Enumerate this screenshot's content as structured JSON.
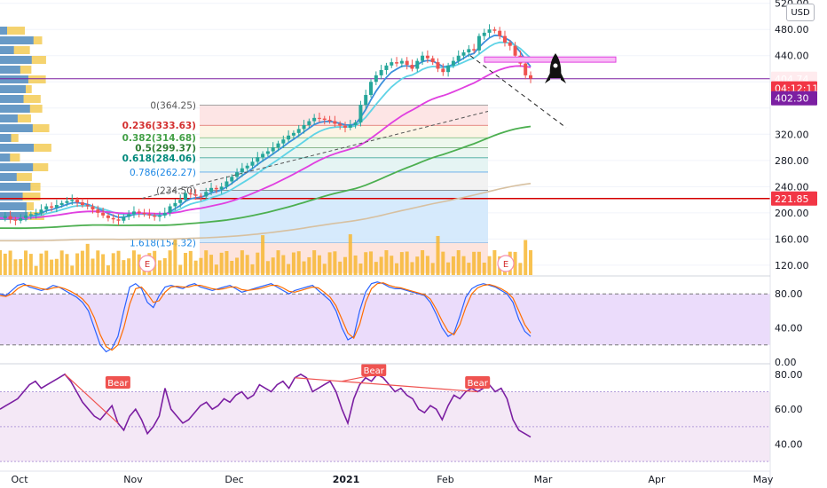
{
  "currency": "USD",
  "colors": {
    "up": "#26a69a",
    "down": "#ef5350",
    "ema_fast": "#3c8fdc",
    "ema_cyan": "#5fd3e6",
    "sma_magenta": "#e040e0",
    "sma_green": "#4caf50",
    "sma_tan": "#d7c0a0",
    "fib_red": "#f8c4c4",
    "fib_blue": "#bfe0f8",
    "resistance": "#d50000",
    "stoch_k": "#2962ff",
    "stoch_d": "#ff6d00",
    "rsi": "#7b1fa2"
  },
  "chart_data": [
    {
      "type": "candlestick",
      "panel": "price",
      "ylim": [
        105,
        525
      ],
      "yticks": [
        "120.00",
        "160.00",
        "200.00",
        "240.00",
        "280.00",
        "320.00",
        "440.00",
        "480.00",
        "520.00"
      ],
      "x_labels": [
        "Oct",
        "Nov",
        "Dec",
        "2021",
        "Feb",
        "Mar",
        "Apr",
        "May"
      ],
      "price_tags": [
        {
          "label": "404.74",
          "value": 404.74,
          "color": "#ffebee",
          "text_color": "#131722"
        },
        {
          "label": "04:12:11",
          "value": 390,
          "color": "#f23645",
          "text_color": "#ffffff"
        },
        {
          "label": "402.30",
          "value": 375,
          "color": "#7b1fa2",
          "text_color": "#ffffff"
        },
        {
          "label": "221.85",
          "value": 221.85,
          "color": "#f23645",
          "text_color": "#ffffff"
        }
      ],
      "closes": [
        192,
        195,
        190,
        188,
        192,
        196,
        198,
        200,
        205,
        210,
        208,
        212,
        215,
        218,
        220,
        216,
        212,
        210,
        205,
        200,
        196,
        192,
        190,
        188,
        194,
        198,
        202,
        200,
        198,
        196,
        194,
        196,
        200,
        210,
        215,
        220,
        230,
        228,
        226,
        225,
        232,
        238,
        236,
        240,
        248,
        255,
        262,
        268,
        272,
        278,
        285,
        290,
        294,
        300,
        306,
        312,
        318,
        322,
        328,
        334,
        340,
        345,
        344,
        342,
        340,
        336,
        333,
        330,
        334,
        338,
        365,
        380,
        400,
        410,
        418,
        425,
        430,
        428,
        432,
        426,
        420,
        432,
        440,
        436,
        430,
        420,
        415,
        425,
        432,
        440,
        445,
        450,
        448,
        470,
        475,
        480,
        478,
        470,
        460,
        455,
        440,
        428,
        410,
        405
      ],
      "fibonacci": [
        {
          "label": "0(364.25)",
          "value": 364.25,
          "color": "#555555"
        },
        {
          "label": "0.236(333.63)",
          "value": 333.63,
          "color": "#d32f2f"
        },
        {
          "label": "0.382(314.68)",
          "value": 314.68,
          "color": "#43a047"
        },
        {
          "label": "0.5(299.37)",
          "value": 299.37,
          "color": "#2e7d32"
        },
        {
          "label": "0.618(284.06)",
          "value": 284.06,
          "color": "#00897b"
        },
        {
          "label": "0.786(262.27)",
          "value": 262.27,
          "color": "#1e88e5"
        },
        {
          "label": "(234.50)",
          "value": 234.5,
          "color": "#555555"
        },
        {
          "label": "1.618(154.32)",
          "value": 154.32,
          "color": "#1e88e5"
        }
      ],
      "earnings_markers": [
        "E",
        "E"
      ],
      "horizontal_lines": [
        {
          "value": 221.85,
          "color": "#d50000"
        },
        {
          "value": 404.74,
          "color": "#7b1fa2"
        }
      ]
    },
    {
      "type": "line",
      "panel": "stochastic",
      "ylim": [
        0,
        100
      ],
      "yticks": [
        "80.00",
        "40.00",
        "0.00"
      ],
      "series": [
        {
          "values": [
            80,
            78,
            84,
            90,
            92,
            88,
            86,
            84,
            86,
            90,
            88,
            84,
            80,
            76,
            70,
            60,
            40,
            20,
            12,
            16,
            30,
            60,
            88,
            92,
            86,
            70,
            64,
            78,
            88,
            90,
            88,
            86,
            90,
            92,
            88,
            86,
            84,
            86,
            88,
            90,
            86,
            82,
            84,
            86,
            88,
            90,
            92,
            88,
            84,
            80,
            84,
            86,
            88,
            90,
            84,
            78,
            72,
            60,
            40,
            26,
            30,
            60,
            82,
            92,
            94,
            92,
            88,
            86,
            86,
            84,
            82,
            80,
            78,
            70,
            56,
            40,
            30,
            34,
            54,
            76,
            86,
            90,
            92,
            90,
            88,
            84,
            80,
            70,
            50,
            36,
            30
          ]
        },
        {
          "values": [
            78,
            77,
            80,
            86,
            90,
            90,
            88,
            86,
            85,
            87,
            88,
            86,
            83,
            79,
            74,
            66,
            52,
            32,
            18,
            14,
            20,
            40,
            68,
            86,
            88,
            80,
            70,
            72,
            82,
            88,
            89,
            88,
            88,
            90,
            90,
            88,
            86,
            85,
            86,
            88,
            88,
            85,
            84,
            85,
            86,
            88,
            90,
            90,
            87,
            83,
            82,
            84,
            86,
            88,
            87,
            82,
            76,
            66,
            50,
            34,
            28,
            44,
            70,
            86,
            92,
            93,
            90,
            88,
            87,
            85,
            83,
            81,
            79,
            74,
            62,
            48,
            36,
            32,
            44,
            64,
            80,
            87,
            90,
            91,
            89,
            86,
            82,
            75,
            60,
            44,
            34
          ]
        }
      ]
    },
    {
      "type": "line",
      "panel": "rsi",
      "ylim": [
        25,
        85
      ],
      "yticks": [
        "80.00",
        "60.00",
        "40.00"
      ],
      "series": [
        {
          "values": [
            60,
            62,
            64,
            66,
            70,
            74,
            76,
            72,
            74,
            76,
            78,
            80,
            76,
            70,
            64,
            60,
            56,
            54,
            58,
            62,
            52,
            48,
            56,
            60,
            54,
            46,
            50,
            56,
            72,
            60,
            56,
            52,
            54,
            58,
            62,
            64,
            60,
            62,
            66,
            64,
            68,
            70,
            66,
            68,
            74,
            72,
            70,
            74,
            76,
            72,
            78,
            80,
            78,
            70,
            72,
            74,
            76,
            70,
            60,
            52,
            66,
            74,
            78,
            76,
            80,
            78,
            74,
            70,
            72,
            68,
            66,
            60,
            58,
            62,
            60,
            54,
            62,
            68,
            66,
            70,
            72,
            70,
            72,
            74,
            70,
            72,
            66,
            54,
            48,
            46,
            44
          ]
        }
      ],
      "annotations": [
        "Bear",
        "Bear",
        "Bear"
      ]
    }
  ]
}
